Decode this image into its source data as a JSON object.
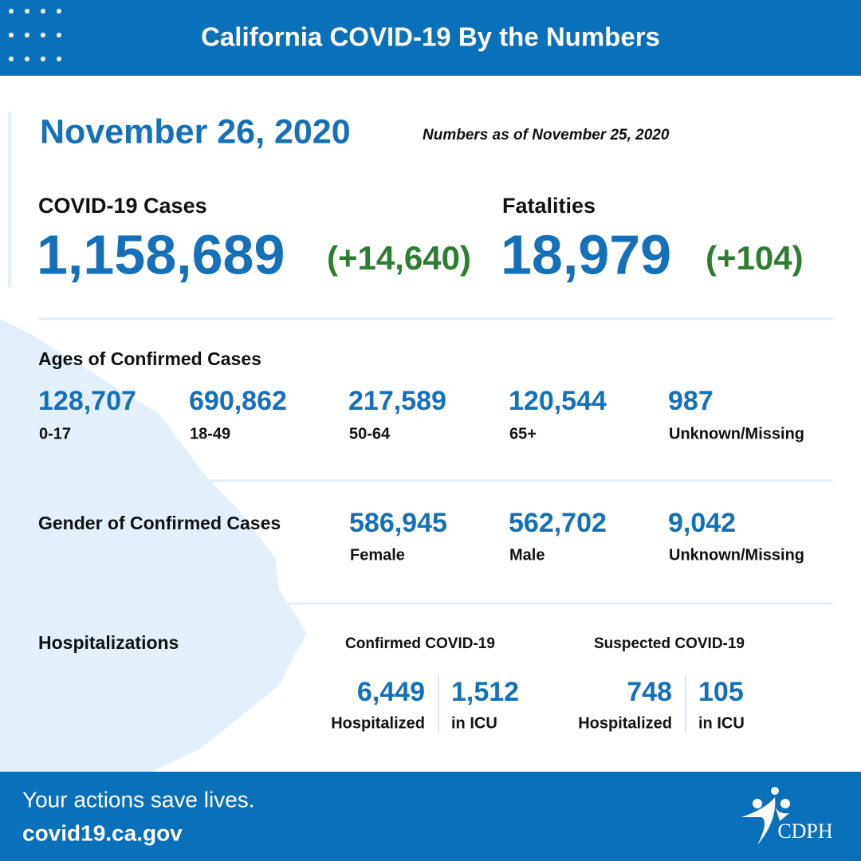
{
  "header": {
    "title": "California COVID-19 By the Numbers"
  },
  "date": "November 26, 2020",
  "as_of": "Numbers as of November 25, 2020",
  "cases": {
    "label": "COVID-19 Cases",
    "total": "1,158,689",
    "change": "(+14,640)"
  },
  "fatalities": {
    "label": "Fatalities",
    "total": "18,979",
    "change": "(+104)"
  },
  "ages": {
    "title": "Ages of Confirmed Cases",
    "groups": [
      {
        "value": "128,707",
        "label": "0-17"
      },
      {
        "value": "690,862",
        "label": "18-49"
      },
      {
        "value": "217,589",
        "label": "50-64"
      },
      {
        "value": "120,544",
        "label": "65+"
      },
      {
        "value": "987",
        "label": "Unknown/Missing"
      }
    ]
  },
  "gender": {
    "title": "Gender of Confirmed Cases",
    "groups": [
      {
        "value": "586,945",
        "label": "Female"
      },
      {
        "value": "562,702",
        "label": "Male"
      },
      {
        "value": "9,042",
        "label": "Unknown/Missing"
      }
    ]
  },
  "hospitalizations": {
    "title": "Hospitalizations",
    "confirmed": {
      "title": "Confirmed COVID-19",
      "hospitalized": {
        "value": "6,449",
        "label": "Hospitalized"
      },
      "icu": {
        "value": "1,512",
        "label": "in ICU"
      }
    },
    "suspected": {
      "title": "Suspected COVID-19",
      "hospitalized": {
        "value": "748",
        "label": "Hospitalized"
      },
      "icu": {
        "value": "105",
        "label": "in ICU"
      }
    }
  },
  "footer": {
    "tagline": "Your actions save lives.",
    "url": "covid19.ca.gov",
    "logo": "CDPH"
  }
}
